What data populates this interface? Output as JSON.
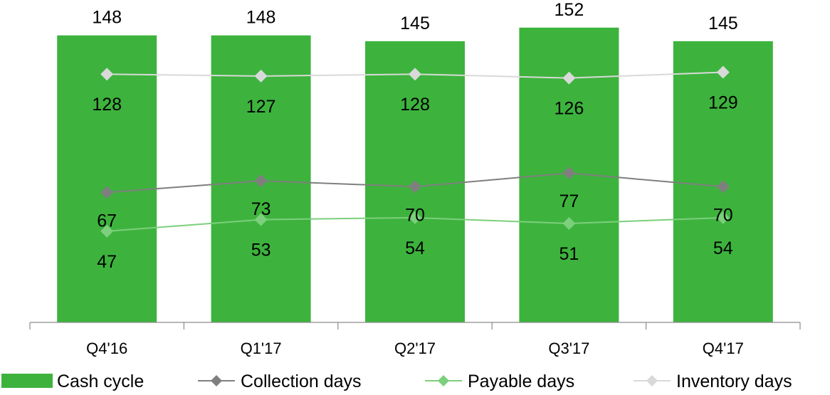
{
  "chart_data": {
    "type": "bar",
    "categories": [
      "Q4'16",
      "Q1'17",
      "Q2'17",
      "Q3'17",
      "Q4'17"
    ],
    "ylim": [
      0,
      160
    ],
    "grid": false,
    "legend_position": "bottom",
    "title": "",
    "xlabel": "",
    "ylabel": "",
    "series": [
      {
        "name": "Cash cycle",
        "kind": "bar",
        "color": "#3db33d",
        "values": [
          148,
          148,
          145,
          152,
          145
        ],
        "labels": [
          "148",
          "148",
          "145",
          "152",
          "145"
        ]
      },
      {
        "name": "Inventory days",
        "kind": "line",
        "color": "#d9d9d9",
        "values": [
          128,
          127,
          128,
          126,
          129
        ],
        "labels": [
          "128",
          "127",
          "128",
          "126",
          "129"
        ]
      },
      {
        "name": "Collection days",
        "kind": "line",
        "color": "#7f7f7f",
        "values": [
          67,
          73,
          70,
          77,
          70
        ],
        "labels": [
          "67",
          "73",
          "70",
          "77",
          "70"
        ]
      },
      {
        "name": "Payable days",
        "kind": "line",
        "color": "#7ccf7c",
        "values": [
          47,
          53,
          54,
          51,
          54
        ],
        "labels": [
          "47",
          "53",
          "54",
          "51",
          "54"
        ]
      }
    ],
    "legend_order": [
      "Cash cycle",
      "Collection days",
      "Payable days",
      "Inventory days"
    ]
  }
}
